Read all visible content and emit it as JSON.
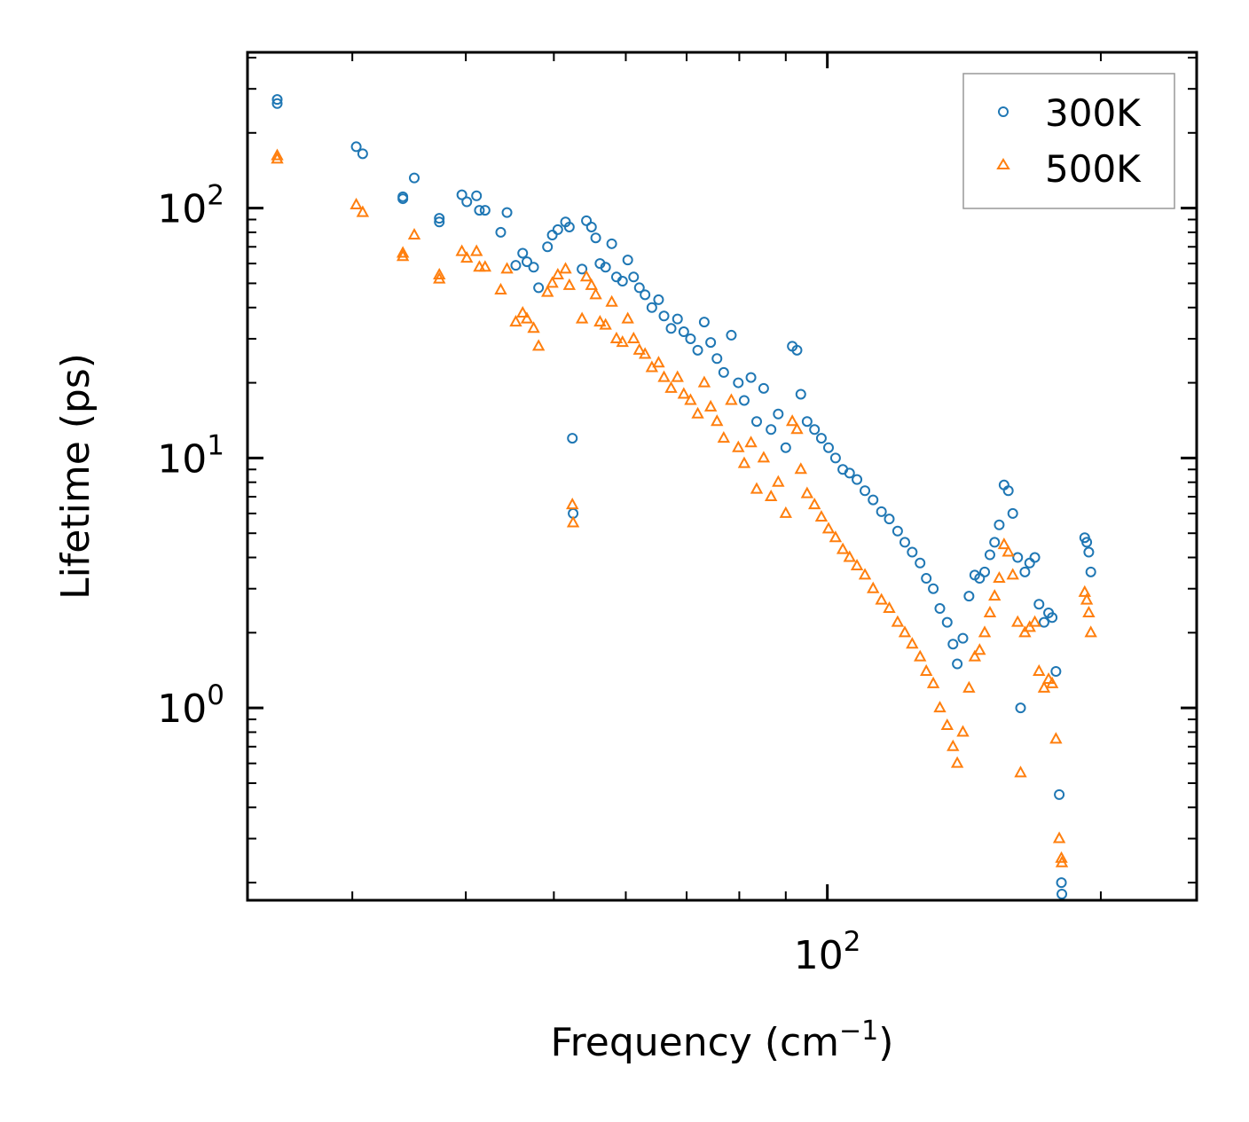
{
  "chart_data": {
    "type": "scatter",
    "title": "",
    "xlabel": "Frequency (cm",
    "xlabel_exp": "−1",
    "xlabel_close": ")",
    "ylabel": "Lifetime (ps)",
    "xscale": "log",
    "yscale": "log",
    "xlim": [
      23,
      255
    ],
    "ylim": [
      0.17,
      420
    ],
    "x_ticks": [
      {
        "value": 100,
        "base": "10",
        "exp": "2"
      }
    ],
    "y_ticks": [
      {
        "value": 1,
        "base": "10",
        "exp": "0"
      },
      {
        "value": 10,
        "base": "10",
        "exp": "1"
      },
      {
        "value": 100,
        "base": "10",
        "exp": "2"
      }
    ],
    "legend_position": "top-right",
    "series": [
      {
        "name": "300K",
        "marker": "circle",
        "color": "#1f77b4",
        "points": [
          [
            24.8,
            272
          ],
          [
            24.8,
            262
          ],
          [
            30.3,
            176
          ],
          [
            30.8,
            165
          ],
          [
            34.1,
            111
          ],
          [
            34.1,
            109
          ],
          [
            35.1,
            132
          ],
          [
            37.4,
            91
          ],
          [
            37.4,
            88
          ],
          [
            39.6,
            113
          ],
          [
            40.1,
            106
          ],
          [
            41.1,
            112
          ],
          [
            41.4,
            98
          ],
          [
            42.0,
            98
          ],
          [
            43.7,
            80
          ],
          [
            44.4,
            96
          ],
          [
            45.4,
            59
          ],
          [
            46.2,
            66
          ],
          [
            46.7,
            61
          ],
          [
            47.5,
            58
          ],
          [
            48.1,
            48
          ],
          [
            49.2,
            70
          ],
          [
            49.8,
            78
          ],
          [
            50.5,
            82
          ],
          [
            51.5,
            88
          ],
          [
            52.0,
            84
          ],
          [
            52.4,
            12
          ],
          [
            52.5,
            6
          ],
          [
            53.7,
            57
          ],
          [
            54.3,
            89
          ],
          [
            55.0,
            84
          ],
          [
            55.6,
            76
          ],
          [
            56.2,
            60
          ],
          [
            57.0,
            58
          ],
          [
            57.9,
            72
          ],
          [
            58.6,
            53
          ],
          [
            59.5,
            51
          ],
          [
            60.3,
            62
          ],
          [
            61.2,
            53
          ],
          [
            62.1,
            48
          ],
          [
            63.0,
            45
          ],
          [
            64.1,
            40
          ],
          [
            65.2,
            43
          ],
          [
            66.1,
            37
          ],
          [
            67.3,
            33
          ],
          [
            68.4,
            36
          ],
          [
            69.5,
            32
          ],
          [
            70.7,
            30
          ],
          [
            72.0,
            27
          ],
          [
            73.2,
            35
          ],
          [
            74.4,
            29
          ],
          [
            75.6,
            25
          ],
          [
            76.9,
            22
          ],
          [
            78.4,
            31
          ],
          [
            79.8,
            20
          ],
          [
            81.0,
            17
          ],
          [
            82.4,
            21
          ],
          [
            83.6,
            14
          ],
          [
            85.1,
            19
          ],
          [
            86.7,
            13
          ],
          [
            88.3,
            15
          ],
          [
            90.0,
            11
          ],
          [
            91.5,
            28
          ],
          [
            92.6,
            27
          ],
          [
            93.5,
            18
          ],
          [
            95.0,
            14
          ],
          [
            96.8,
            13
          ],
          [
            98.5,
            12
          ],
          [
            100.3,
            11
          ],
          [
            102.1,
            10
          ],
          [
            104.0,
            9
          ],
          [
            105.8,
            8.7
          ],
          [
            107.8,
            8.2
          ],
          [
            110.0,
            7.4
          ],
          [
            112.3,
            6.8
          ],
          [
            114.7,
            6.1
          ],
          [
            117.0,
            5.7
          ],
          [
            119.5,
            5.1
          ],
          [
            121.7,
            4.6
          ],
          [
            124.0,
            4.2
          ],
          [
            126.5,
            3.8
          ],
          [
            128.5,
            3.3
          ],
          [
            130.8,
            3.0
          ],
          [
            133.0,
            2.5
          ],
          [
            135.5,
            2.2
          ],
          [
            137.5,
            1.8
          ],
          [
            139.0,
            1.5
          ],
          [
            141.0,
            1.9
          ],
          [
            143.2,
            2.8
          ],
          [
            145.3,
            3.4
          ],
          [
            147.1,
            3.3
          ],
          [
            149.0,
            3.5
          ],
          [
            151.0,
            4.1
          ],
          [
            152.8,
            4.6
          ],
          [
            154.6,
            5.4
          ],
          [
            156.5,
            7.8
          ],
          [
            158.2,
            7.4
          ],
          [
            160.0,
            6.0
          ],
          [
            162.0,
            4.0
          ],
          [
            163.2,
            1.0
          ],
          [
            165.0,
            3.5
          ],
          [
            167.0,
            3.8
          ],
          [
            169.2,
            4.0
          ],
          [
            171.0,
            2.6
          ],
          [
            173.2,
            2.2
          ],
          [
            175.2,
            2.4
          ],
          [
            176.8,
            2.3
          ],
          [
            178.5,
            1.4
          ],
          [
            180.0,
            0.45
          ],
          [
            181.0,
            0.2
          ],
          [
            181.2,
            0.18
          ],
          [
            192.0,
            4.8
          ],
          [
            193.0,
            4.6
          ],
          [
            194.0,
            4.2
          ],
          [
            195.0,
            3.5
          ]
        ]
      },
      {
        "name": "500K",
        "marker": "triangle",
        "color": "#ff7f0e",
        "points": [
          [
            24.8,
            162
          ],
          [
            24.8,
            157
          ],
          [
            30.3,
            103
          ],
          [
            30.8,
            96
          ],
          [
            34.1,
            66
          ],
          [
            34.1,
            64
          ],
          [
            35.1,
            78
          ],
          [
            37.4,
            54
          ],
          [
            37.4,
            52
          ],
          [
            39.6,
            67
          ],
          [
            40.1,
            63
          ],
          [
            41.1,
            67
          ],
          [
            41.4,
            58
          ],
          [
            42.0,
            58
          ],
          [
            43.7,
            47
          ],
          [
            44.4,
            57
          ],
          [
            45.4,
            35
          ],
          [
            46.2,
            38
          ],
          [
            46.7,
            36
          ],
          [
            47.5,
            33
          ],
          [
            48.1,
            28
          ],
          [
            49.2,
            46
          ],
          [
            49.8,
            50
          ],
          [
            50.5,
            54
          ],
          [
            51.5,
            57
          ],
          [
            52.0,
            49
          ],
          [
            52.4,
            6.5
          ],
          [
            52.5,
            5.5
          ],
          [
            53.7,
            36
          ],
          [
            54.3,
            53
          ],
          [
            55.0,
            49
          ],
          [
            55.6,
            45
          ],
          [
            56.2,
            35
          ],
          [
            57.0,
            34
          ],
          [
            57.9,
            42
          ],
          [
            58.6,
            30
          ],
          [
            59.5,
            29
          ],
          [
            60.3,
            36
          ],
          [
            61.2,
            30
          ],
          [
            62.1,
            27
          ],
          [
            63.0,
            26
          ],
          [
            64.1,
            23
          ],
          [
            65.2,
            24
          ],
          [
            66.1,
            21
          ],
          [
            67.3,
            19
          ],
          [
            68.4,
            21
          ],
          [
            69.5,
            18
          ],
          [
            70.7,
            17
          ],
          [
            72.0,
            15
          ],
          [
            73.2,
            20
          ],
          [
            74.4,
            16
          ],
          [
            75.6,
            14
          ],
          [
            76.9,
            12
          ],
          [
            78.4,
            17
          ],
          [
            79.8,
            11
          ],
          [
            81.0,
            9.5
          ],
          [
            82.4,
            11.5
          ],
          [
            83.6,
            7.5
          ],
          [
            85.1,
            10
          ],
          [
            86.7,
            7
          ],
          [
            88.3,
            8
          ],
          [
            90.0,
            6
          ],
          [
            91.5,
            14
          ],
          [
            92.6,
            13
          ],
          [
            93.5,
            9
          ],
          [
            95.0,
            7.2
          ],
          [
            96.8,
            6.5
          ],
          [
            98.5,
            5.8
          ],
          [
            100.3,
            5.2
          ],
          [
            102.1,
            4.8
          ],
          [
            104.0,
            4.3
          ],
          [
            105.8,
            4.0
          ],
          [
            107.8,
            3.7
          ],
          [
            110.0,
            3.4
          ],
          [
            112.3,
            3.0
          ],
          [
            114.7,
            2.7
          ],
          [
            117.0,
            2.5
          ],
          [
            119.5,
            2.2
          ],
          [
            121.7,
            2.0
          ],
          [
            124.0,
            1.8
          ],
          [
            126.5,
            1.6
          ],
          [
            128.5,
            1.4
          ],
          [
            130.8,
            1.25
          ],
          [
            133.0,
            1.0
          ],
          [
            135.5,
            0.85
          ],
          [
            137.5,
            0.7
          ],
          [
            139.0,
            0.6
          ],
          [
            141.0,
            0.8
          ],
          [
            143.2,
            1.2
          ],
          [
            145.3,
            1.6
          ],
          [
            147.1,
            1.7
          ],
          [
            149.0,
            2.0
          ],
          [
            151.0,
            2.4
          ],
          [
            152.8,
            2.8
          ],
          [
            154.6,
            3.3
          ],
          [
            156.5,
            4.5
          ],
          [
            158.2,
            4.2
          ],
          [
            160.0,
            3.4
          ],
          [
            162.0,
            2.2
          ],
          [
            163.2,
            0.55
          ],
          [
            165.0,
            2.0
          ],
          [
            167.0,
            2.1
          ],
          [
            169.2,
            2.2
          ],
          [
            171.0,
            1.4
          ],
          [
            173.2,
            1.2
          ],
          [
            175.2,
            1.3
          ],
          [
            176.8,
            1.25
          ],
          [
            178.5,
            0.75
          ],
          [
            180.0,
            0.3
          ],
          [
            181.0,
            0.25
          ],
          [
            181.2,
            0.24
          ],
          [
            192.0,
            2.9
          ],
          [
            193.0,
            2.7
          ],
          [
            194.0,
            2.4
          ],
          [
            195.0,
            2.0
          ]
        ]
      }
    ]
  }
}
